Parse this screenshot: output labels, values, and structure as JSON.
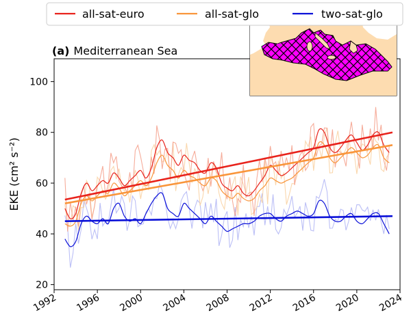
{
  "chart_data": {
    "type": "line",
    "panel_label": "(a)",
    "title": "Mediterranean Sea",
    "xlabel": "",
    "ylabel": "EKE (cm² s⁻²)",
    "xlim": [
      1992,
      2024
    ],
    "ylim": [
      18,
      109
    ],
    "x_ticks": [
      1992,
      1996,
      2000,
      2004,
      2008,
      2012,
      2016,
      2020,
      2024
    ],
    "y_ticks": [
      20,
      40,
      60,
      80,
      100
    ],
    "legend": {
      "placement": "top",
      "entries": [
        "all-sat-euro",
        "all-sat-glo",
        "two-sat-glo"
      ]
    },
    "inset": {
      "description": "map of the Mediterranean Sea",
      "label": "Mediterranean Sea map inset"
    },
    "series": [
      {
        "name": "all-sat-euro",
        "color": "#e8221b",
        "light_color": "#f5a38f",
        "trend": {
          "x": [
            1993,
            2023.3
          ],
          "y": [
            53.5,
            80.0
          ]
        },
        "smoothed": {
          "x": [
            1993.0,
            1993.5,
            1994.0,
            1994.5,
            1995.0,
            1995.5,
            1996.0,
            1996.5,
            1997.0,
            1997.5,
            1998.0,
            1998.5,
            1999.0,
            1999.5,
            2000.0,
            2000.5,
            2001.0,
            2001.5,
            2002.0,
            2002.5,
            2003.0,
            2003.5,
            2004.0,
            2004.5,
            2005.0,
            2005.5,
            2006.0,
            2006.5,
            2007.0,
            2007.5,
            2008.0,
            2008.5,
            2009.0,
            2009.5,
            2010.0,
            2010.5,
            2011.0,
            2011.5,
            2012.0,
            2012.5,
            2013.0,
            2013.5,
            2014.0,
            2014.5,
            2015.0,
            2015.5,
            2016.0,
            2016.5,
            2017.0,
            2017.5,
            2018.0,
            2018.5,
            2019.0,
            2019.5,
            2020.0,
            2020.5,
            2021.0,
            2021.5,
            2022.0,
            2022.5,
            2023.0
          ],
          "y": [
            50,
            46,
            48,
            56,
            60,
            57,
            59,
            61,
            60,
            64,
            62,
            59,
            61,
            63,
            65,
            62,
            66,
            74,
            77,
            72,
            70,
            67,
            71,
            69,
            68,
            65,
            64,
            68,
            66,
            60,
            58,
            57,
            59,
            56,
            55,
            57,
            60,
            63,
            67,
            65,
            63,
            64,
            66,
            68,
            70,
            72,
            74,
            81,
            80,
            74,
            72,
            74,
            77,
            79,
            76,
            73,
            75,
            79,
            80,
            75,
            72
          ]
        },
        "raw": {
          "start": 1993.0,
          "step": 0.25,
          "amplitude": 12
        }
      },
      {
        "name": "all-sat-glo",
        "color": "#f9953a",
        "light_color": "#fad3a4",
        "trend": {
          "x": [
            1993,
            2023.3
          ],
          "y": [
            52.0,
            75.0
          ]
        },
        "smoothed": {
          "x": [
            1993.0,
            1993.5,
            1994.0,
            1994.5,
            1995.0,
            1995.5,
            1996.0,
            1996.5,
            1997.0,
            1997.5,
            1998.0,
            1998.5,
            1999.0,
            1999.5,
            2000.0,
            2000.5,
            2001.0,
            2001.5,
            2002.0,
            2002.5,
            2003.0,
            2003.5,
            2004.0,
            2004.5,
            2005.0,
            2005.5,
            2006.0,
            2006.5,
            2007.0,
            2007.5,
            2008.0,
            2008.5,
            2009.0,
            2009.5,
            2010.0,
            2010.5,
            2011.0,
            2011.5,
            2012.0,
            2012.5,
            2013.0,
            2013.5,
            2014.0,
            2014.5,
            2015.0,
            2015.5,
            2016.0,
            2016.5,
            2017.0,
            2017.5,
            2018.0,
            2018.5,
            2019.0,
            2019.5,
            2020.0,
            2020.5,
            2021.0,
            2021.5,
            2022.0,
            2022.5,
            2023.0
          ],
          "y": [
            44,
            43,
            45,
            52,
            55,
            53,
            55,
            57,
            56,
            60,
            58,
            55,
            57,
            59,
            61,
            59,
            62,
            68,
            71,
            67,
            65,
            62,
            65,
            63,
            62,
            60,
            59,
            62,
            61,
            57,
            55,
            54,
            56,
            54,
            53,
            54,
            57,
            59,
            62,
            61,
            60,
            61,
            62,
            64,
            66,
            68,
            70,
            76,
            75,
            70,
            68,
            70,
            72,
            74,
            72,
            70,
            71,
            74,
            75,
            70,
            68
          ]
        },
        "raw": {
          "start": 1993.0,
          "step": 0.25,
          "amplitude": 11
        }
      },
      {
        "name": "two-sat-glo",
        "color": "#0a10d8",
        "light_color": "#b4b8f5",
        "trend": {
          "x": [
            1993,
            2023.3
          ],
          "y": [
            45.0,
            47.0
          ]
        },
        "smoothed": {
          "x": [
            1993.0,
            1993.5,
            1994.0,
            1994.5,
            1995.0,
            1995.5,
            1996.0,
            1996.5,
            1997.0,
            1997.5,
            1998.0,
            1998.5,
            1999.0,
            1999.5,
            2000.0,
            2000.5,
            2001.0,
            2001.5,
            2002.0,
            2002.5,
            2003.0,
            2003.5,
            2004.0,
            2004.5,
            2005.0,
            2005.5,
            2006.0,
            2006.5,
            2007.0,
            2007.5,
            2008.0,
            2008.5,
            2009.0,
            2009.5,
            2010.0,
            2010.5,
            2011.0,
            2011.5,
            2012.0,
            2012.5,
            2013.0,
            2013.5,
            2014.0,
            2014.5,
            2015.0,
            2015.5,
            2016.0,
            2016.5,
            2017.0,
            2017.5,
            2018.0,
            2018.5,
            2019.0,
            2019.5,
            2020.0,
            2020.5,
            2021.0,
            2021.5,
            2022.0,
            2022.5,
            2023.0
          ],
          "y": [
            38,
            35,
            37,
            44,
            47,
            45,
            44,
            46,
            44,
            50,
            52,
            47,
            45,
            46,
            44,
            48,
            52,
            55,
            56,
            50,
            48,
            47,
            52,
            50,
            48,
            46,
            44,
            47,
            45,
            43,
            41,
            42,
            43,
            44,
            44,
            45,
            47,
            48,
            48,
            46,
            45,
            47,
            48,
            49,
            48,
            47,
            48,
            53,
            52,
            47,
            45,
            45,
            47,
            48,
            45,
            44,
            46,
            48,
            48,
            44,
            40
          ]
        },
        "raw": {
          "start": 1993.0,
          "step": 0.25,
          "amplitude": 9
        }
      }
    ]
  }
}
